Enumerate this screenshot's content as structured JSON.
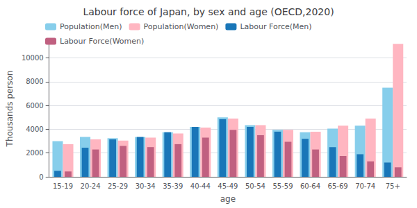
{
  "chart_data": {
    "type": "bar",
    "title": "Labour force of Japan, by sex and age (OECD,2020)",
    "xlabel": "age",
    "ylabel": "Thousands person",
    "categories": [
      "15-19",
      "20-24",
      "25-29",
      "30-34",
      "35-39",
      "40-44",
      "45-49",
      "50-54",
      "55-59",
      "60-64",
      "65-69",
      "70-74",
      "75+"
    ],
    "series": [
      {
        "name": "Population(Men)",
        "color": "#87CEEB",
        "values": [
          3000,
          3350,
          3250,
          3350,
          3750,
          4200,
          5000,
          4350,
          3950,
          3750,
          4050,
          4300,
          7500
        ]
      },
      {
        "name": "Population(Women)",
        "color": "#FFB6C1",
        "values": [
          2750,
          3150,
          3050,
          3300,
          3650,
          4150,
          4900,
          4350,
          3950,
          3800,
          4300,
          4900,
          11200
        ]
      },
      {
        "name": "Labour Force(Men)",
        "color": "#1976B8",
        "values": [
          500,
          2450,
          3150,
          3350,
          3750,
          4200,
          4850,
          4200,
          3800,
          3200,
          2500,
          1900,
          1200
        ]
      },
      {
        "name": "Labour Force(Women)",
        "color": "#C06080",
        "values": [
          450,
          2300,
          2600,
          2500,
          2750,
          3300,
          3950,
          3500,
          2950,
          2300,
          1750,
          1300,
          800
        ]
      }
    ],
    "ylim": [
      0,
      11500
    ],
    "yticks": [
      0,
      2000,
      4000,
      6000,
      8000,
      10000
    ],
    "grid": true,
    "legend": "upper left",
    "stacked": false
  }
}
